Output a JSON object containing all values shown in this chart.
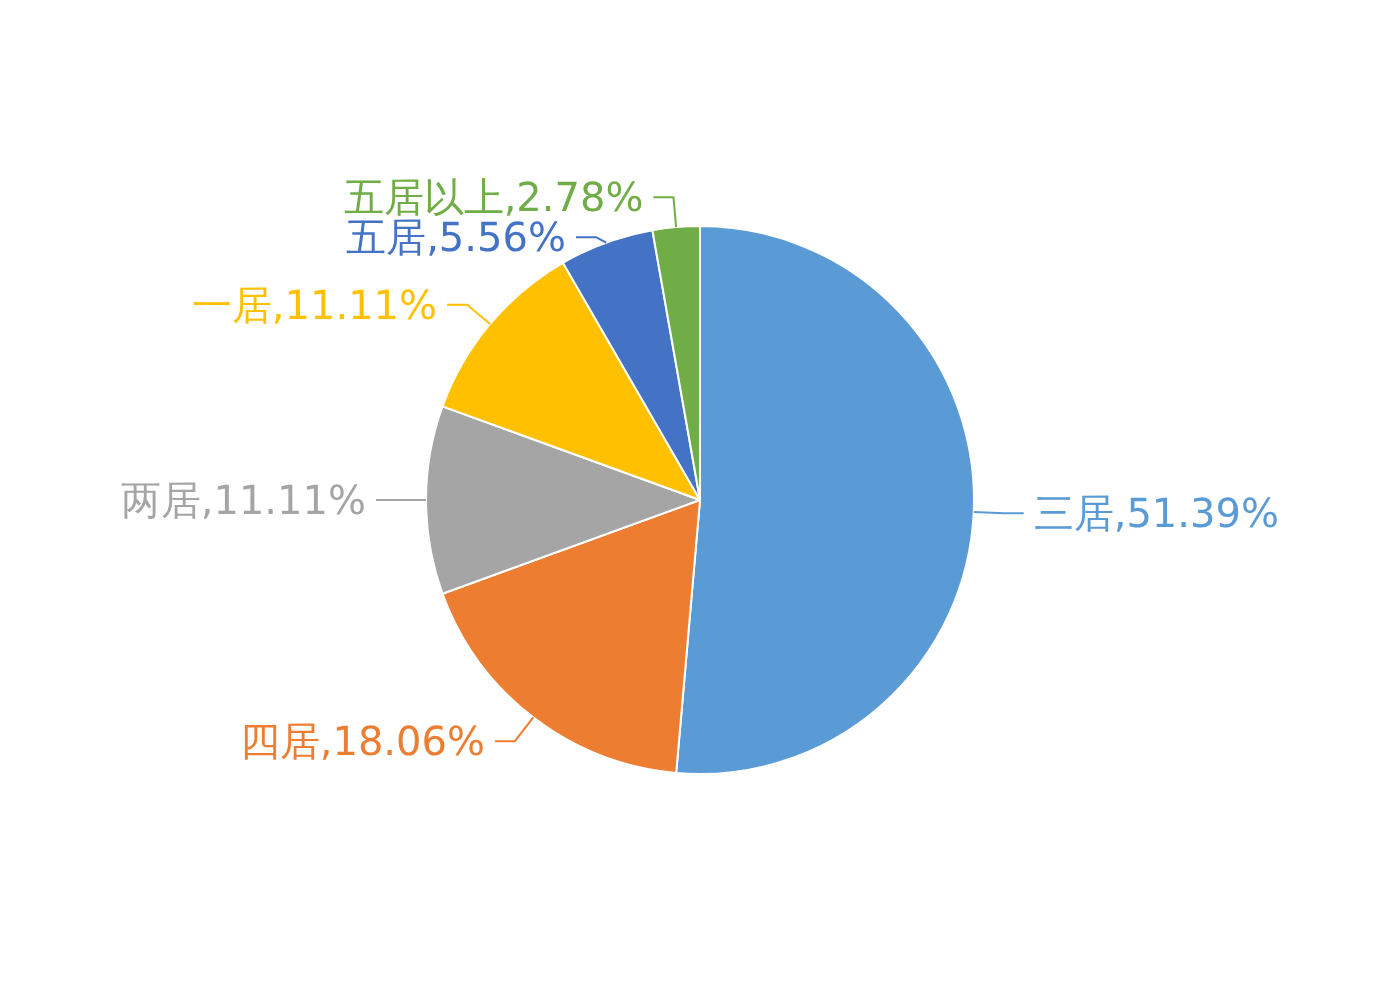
{
  "chart_data": {
    "type": "pie",
    "categories": [
      "三居",
      "四居",
      "两居",
      "一居",
      "五居",
      "五居以上"
    ],
    "values": [
      51.39,
      18.06,
      11.11,
      11.11,
      5.56,
      2.78
    ],
    "colors": [
      "#5b9bd5",
      "#ed7d31",
      "#a5a5a5",
      "#ffc000",
      "#4472c4",
      "#70ad47"
    ],
    "value_labels": [
      ",51.39%",
      ",18.06%",
      ",11.11%",
      ",11.11%",
      ",5.56%",
      ",2.78%"
    ]
  }
}
